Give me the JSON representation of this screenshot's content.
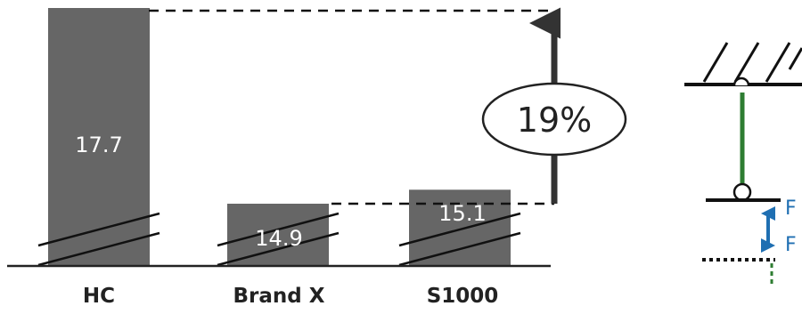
{
  "chart_data": {
    "type": "bar",
    "categories": [
      "HC",
      "Brand X",
      "S1000"
    ],
    "values": [
      17.7,
      14.9,
      15.1
    ],
    "value_labels": [
      "17.7",
      "14.9",
      "15.1"
    ],
    "axis_broken": true,
    "annotation": {
      "text": "19%",
      "from": "Brand X",
      "to": "HC",
      "arrow_from_bar": "S1000"
    },
    "colors": {
      "bar": "#666666",
      "axis": "#222222",
      "arrow": "#333333",
      "link": "#2e7d32",
      "force": "#1f6fb2"
    }
  },
  "diagram": {
    "force_labels": [
      "F",
      "F"
    ]
  }
}
